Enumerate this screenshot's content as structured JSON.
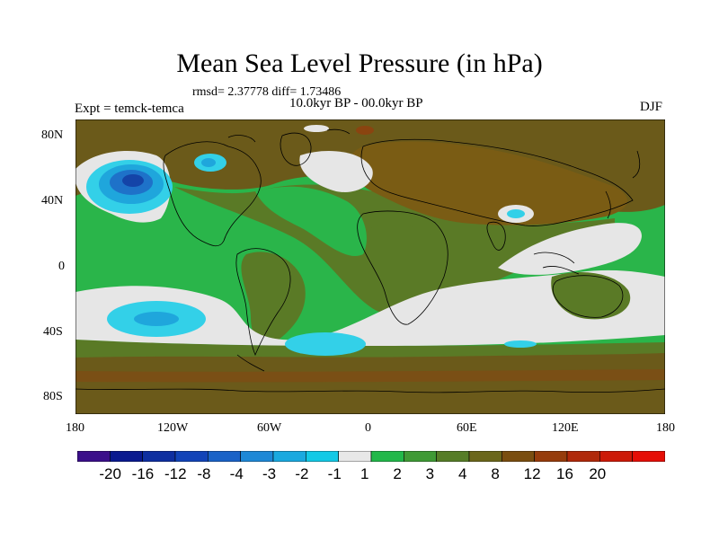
{
  "title": "Mean Sea Level Pressure (in hPa)",
  "stats": "rmsd= 2.37778 diff= 1.73486",
  "subtitle": "10.0kyr BP - 00.0kyr BP",
  "experiment": "Expt = temck-temca",
  "season": "DJF",
  "map": {
    "y_ticks": [
      "80N",
      "40N",
      "0",
      "40S",
      "80S"
    ],
    "x_ticks": [
      "180",
      "120W",
      "60W",
      "0",
      "60E",
      "120E",
      "180"
    ],
    "colorbar": {
      "colors": [
        "#3b0f8a",
        "#0a1a8f",
        "#0e2fa0",
        "#1244b8",
        "#1a62c7",
        "#1e88d6",
        "#1aa9df",
        "#12c9e6",
        "#e8e8e8",
        "#22b84a",
        "#3f9a35",
        "#567d27",
        "#6b661b",
        "#7a4e10",
        "#963c0c",
        "#b0290a",
        "#cc1a08",
        "#e50e06"
      ],
      "labels": [
        "-20",
        "-16",
        "-12",
        "-8",
        "-4",
        "-3",
        "-2",
        "-1",
        "1",
        "2",
        "3",
        "4",
        "8",
        "12",
        "16",
        "20"
      ],
      "palette": {
        "dark_brown": "#6b5a1a",
        "brown": "#7a5c14",
        "olive": "#5a7a26",
        "green": "#2ab54a",
        "white": "#e6e6e6",
        "cyan": "#33d0e8",
        "light_blue": "#1fa6dc",
        "blue": "#1e72c9",
        "dark_blue": "#1444a8",
        "orange_brown": "#8a4410"
      }
    }
  }
}
